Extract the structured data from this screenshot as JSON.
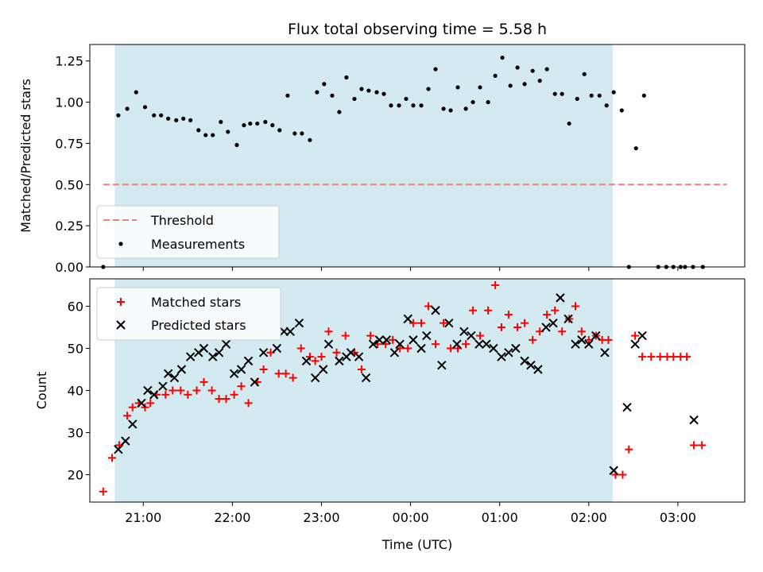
{
  "chart_data": [
    {
      "type": "scatter",
      "title": "Flux total observing time = 5.58 h",
      "xlabel": "",
      "ylabel": "Matched/Predicted stars",
      "ylim": [
        0,
        1.35
      ],
      "yticks": [
        "0.00",
        "0.25",
        "0.50",
        "0.75",
        "1.00",
        "1.25"
      ],
      "xlim_hours": [
        20.4,
        27.75
      ],
      "shaded_span_hours": [
        20.68,
        26.27
      ],
      "shaded_color": "#d3eaf0",
      "legend": {
        "placement": "lower-left",
        "entries": [
          "Threshold",
          "Measurements"
        ]
      },
      "threshold": {
        "name": "Threshold",
        "y": 0.5,
        "x_range_hours": [
          20.55,
          27.55
        ],
        "color": "#f08080",
        "style": "dashed"
      },
      "series": [
        {
          "name": "Measurements",
          "color": "#000000",
          "marker": "dot",
          "x_hours": [
            20.55,
            20.72,
            20.82,
            20.92,
            21.02,
            21.12,
            21.2,
            21.28,
            21.37,
            21.45,
            21.53,
            21.62,
            21.7,
            21.78,
            21.87,
            21.95,
            22.05,
            22.13,
            22.2,
            22.28,
            22.37,
            22.45,
            22.53,
            22.62,
            22.7,
            22.78,
            22.87,
            22.95,
            23.03,
            23.12,
            23.2,
            23.28,
            23.37,
            23.45,
            23.53,
            23.62,
            23.7,
            23.78,
            23.87,
            23.95,
            24.03,
            24.12,
            24.2,
            24.28,
            24.37,
            24.45,
            24.53,
            24.62,
            24.7,
            24.78,
            24.87,
            24.95,
            25.03,
            25.12,
            25.2,
            25.28,
            25.37,
            25.45,
            25.53,
            25.62,
            25.7,
            25.78,
            25.87,
            25.95,
            26.03,
            26.12,
            26.2,
            26.28,
            26.37,
            26.45,
            26.53,
            26.62,
            26.78,
            26.87,
            26.95,
            27.03,
            27.08,
            27.17,
            27.28
          ],
          "y": [
            0.0,
            0.92,
            0.96,
            1.06,
            0.97,
            0.92,
            0.92,
            0.9,
            0.89,
            0.9,
            0.89,
            0.83,
            0.8,
            0.8,
            0.88,
            0.82,
            0.74,
            0.86,
            0.87,
            0.87,
            0.88,
            0.86,
            0.83,
            1.04,
            0.81,
            0.81,
            0.77,
            1.06,
            1.11,
            1.04,
            0.94,
            1.15,
            1.02,
            1.08,
            1.07,
            1.06,
            1.05,
            0.98,
            0.98,
            1.02,
            0.98,
            0.98,
            1.08,
            1.2,
            0.96,
            0.95,
            1.09,
            0.96,
            1.0,
            1.09,
            1.0,
            1.16,
            1.27,
            1.1,
            1.21,
            1.11,
            1.19,
            1.13,
            1.2,
            1.05,
            1.05,
            0.87,
            1.02,
            1.17,
            1.04,
            1.04,
            0.98,
            1.06,
            0.95,
            0.0,
            0.72,
            1.04,
            0.0,
            0.0,
            0.0,
            0.0,
            0.0,
            0.0,
            0.0
          ]
        }
      ]
    },
    {
      "type": "scatter",
      "title": "",
      "xlabel": "Time (UTC)",
      "ylabel": "Count",
      "ylim": [
        13.5,
        66.5
      ],
      "yticks": [
        "20",
        "30",
        "40",
        "50",
        "60"
      ],
      "xticks": [
        "21:00",
        "22:00",
        "23:00",
        "00:00",
        "01:00",
        "02:00",
        "03:00"
      ],
      "xlim_hours": [
        20.4,
        27.75
      ],
      "shaded_span_hours": [
        20.68,
        26.27
      ],
      "legend": {
        "placement": "top-left",
        "entries": [
          "Matched stars",
          "Predicted stars"
        ]
      },
      "series": [
        {
          "name": "Matched stars",
          "color": "#ff0000",
          "marker": "plus",
          "x_hours": [
            20.55,
            20.65,
            20.73,
            20.82,
            20.88,
            20.95,
            21.02,
            21.08,
            21.15,
            21.25,
            21.33,
            21.42,
            21.5,
            21.6,
            21.68,
            21.77,
            21.85,
            21.93,
            22.02,
            22.1,
            22.18,
            22.28,
            22.35,
            22.43,
            22.52,
            22.6,
            22.68,
            22.77,
            22.87,
            22.93,
            23.0,
            23.08,
            23.17,
            23.27,
            23.37,
            23.45,
            23.55,
            23.63,
            23.72,
            23.8,
            23.88,
            23.97,
            24.03,
            24.12,
            24.2,
            24.28,
            24.37,
            24.45,
            24.53,
            24.62,
            24.7,
            24.78,
            24.87,
            24.95,
            25.02,
            25.1,
            25.2,
            25.28,
            25.37,
            25.45,
            25.53,
            25.62,
            25.7,
            25.78,
            25.85,
            25.92,
            26.0,
            26.08,
            26.15,
            26.22,
            26.3,
            26.38,
            26.45,
            26.52,
            26.6,
            26.7,
            26.8,
            26.88,
            26.95,
            27.03,
            27.1,
            27.18,
            27.27
          ],
          "y": [
            16,
            24,
            27,
            34,
            36,
            37,
            36,
            37,
            39,
            39,
            40,
            40,
            39,
            40,
            42,
            40,
            38,
            38,
            39,
            41,
            37,
            42,
            45,
            49,
            44,
            44,
            43,
            50,
            48,
            47,
            48,
            54,
            49,
            53,
            49,
            45,
            53,
            51,
            51,
            52,
            50,
            50,
            56,
            56,
            60,
            51,
            56,
            50,
            50,
            51,
            59,
            53,
            59,
            65,
            55,
            58,
            55,
            56,
            52,
            54,
            58,
            59,
            54,
            57,
            60,
            54,
            52,
            53,
            52,
            52,
            20,
            20,
            26,
            53,
            48,
            48,
            48,
            48,
            48,
            48,
            48,
            27,
            27
          ]
        },
        {
          "name": "Predicted stars",
          "color": "#000000",
          "marker": "x",
          "x_hours": [
            20.72,
            20.8,
            20.88,
            20.98,
            21.05,
            21.12,
            21.22,
            21.28,
            21.35,
            21.43,
            21.53,
            21.62,
            21.68,
            21.78,
            21.85,
            21.93,
            22.02,
            22.1,
            22.18,
            22.25,
            22.35,
            22.5,
            22.58,
            22.65,
            22.75,
            22.83,
            22.93,
            23.02,
            23.08,
            23.2,
            23.28,
            23.33,
            23.42,
            23.5,
            23.58,
            23.65,
            23.73,
            23.82,
            23.88,
            23.97,
            24.03,
            24.12,
            24.18,
            24.28,
            24.35,
            24.43,
            24.52,
            24.6,
            24.68,
            24.77,
            24.85,
            24.93,
            25.02,
            25.1,
            25.18,
            25.28,
            25.35,
            25.43,
            25.52,
            25.6,
            25.68,
            25.77,
            25.85,
            25.92,
            26.0,
            26.08,
            26.18,
            26.28,
            26.43,
            26.52,
            26.6,
            27.18
          ],
          "y": [
            26,
            28,
            32,
            37,
            40,
            39,
            41,
            44,
            43,
            45,
            48,
            49,
            50,
            48,
            49,
            51,
            44,
            45,
            47,
            42,
            49,
            50,
            54,
            54,
            56,
            47,
            43,
            45,
            51,
            47,
            48,
            49,
            48,
            43,
            51,
            52,
            52,
            49,
            51,
            57,
            52,
            50,
            53,
            59,
            46,
            56,
            51,
            54,
            53,
            51,
            51,
            50,
            48,
            49,
            50,
            47,
            46,
            45,
            55,
            56,
            62,
            57,
            51,
            52,
            51,
            53,
            49,
            21,
            36,
            51,
            53,
            33
          ]
        }
      ]
    }
  ]
}
